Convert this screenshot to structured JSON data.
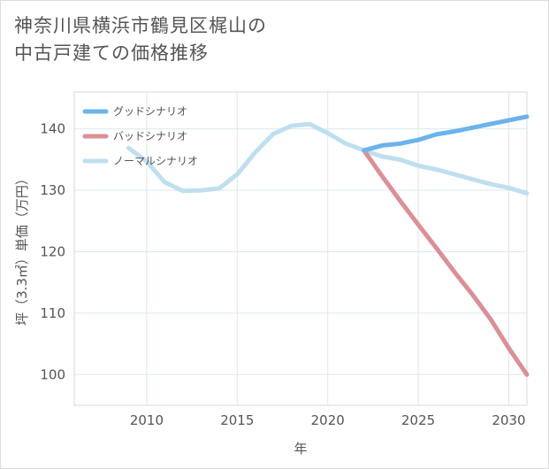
{
  "title_line1": "神奈川県横浜市鶴見区梶山の",
  "title_line2": "中古戸建ての価格推移",
  "chart_data": {
    "type": "line",
    "xlabel": "年",
    "ylabel": "坪（3.3㎡）単価（万円）",
    "xlim": [
      2006,
      2031
    ],
    "ylim": [
      95,
      146
    ],
    "x_ticks": [
      2010,
      2015,
      2020,
      2025,
      2030
    ],
    "y_ticks": [
      100,
      110,
      120,
      130,
      140
    ],
    "grid": true,
    "legend_position": "top-left",
    "series": [
      {
        "name": "グッドシナリオ",
        "color": "#6ab4ec",
        "x": [
          2022,
          2023,
          2024,
          2025,
          2026,
          2027,
          2028,
          2029,
          2030,
          2031
        ],
        "values": [
          136.5,
          137.3,
          137.6,
          138.2,
          139.1,
          139.6,
          140.2,
          140.8,
          141.4,
          142.0
        ]
      },
      {
        "name": "バッドシナリオ",
        "color": "#dc8f96",
        "x": [
          2022,
          2023,
          2024,
          2025,
          2026,
          2027,
          2028,
          2029,
          2030,
          2031
        ],
        "values": [
          136.5,
          132.3,
          128.3,
          124.4,
          120.6,
          116.7,
          113.0,
          109.0,
          104.3,
          100.0
        ]
      },
      {
        "name": "ノーマルシナリオ",
        "color": "#bfdff0",
        "x": [
          2009,
          2010,
          2011,
          2012,
          2013,
          2014,
          2015,
          2016,
          2017,
          2018,
          2019,
          2020,
          2021,
          2022,
          2023,
          2024,
          2025,
          2026,
          2027,
          2028,
          2029,
          2030,
          2031
        ],
        "values": [
          136.9,
          134.7,
          131.3,
          129.9,
          130.0,
          130.3,
          132.6,
          136.2,
          139.2,
          140.5,
          140.8,
          139.3,
          137.6,
          136.5,
          135.5,
          135.0,
          134.0,
          133.4,
          132.6,
          131.8,
          131.0,
          130.4,
          129.5
        ]
      }
    ]
  }
}
